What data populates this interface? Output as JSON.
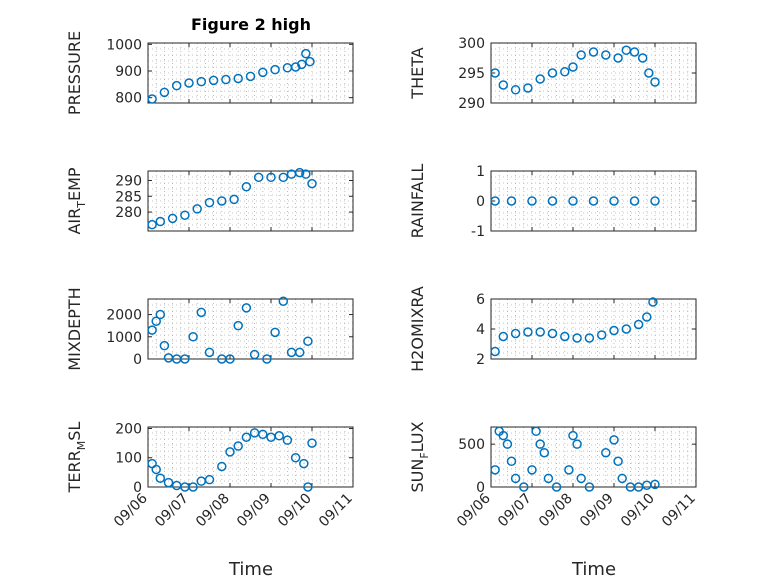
{
  "figure": {
    "title": "Figure 2 high",
    "time_ticks": [
      "09/06",
      "09/07",
      "09/08",
      "09/09",
      "09/10",
      "09/11"
    ],
    "xlabel": "Time",
    "marker_color": "#0072BD"
  },
  "chart_data": [
    {
      "type": "scatter",
      "ylabel": "PRESSURE",
      "ylim": [
        780,
        1005
      ],
      "yticks": [
        800,
        900,
        1000
      ],
      "ytick_labels": [
        "800",
        "900",
        "1000"
      ],
      "x": [
        0.1,
        0.4,
        0.7,
        1.0,
        1.3,
        1.6,
        1.9,
        2.2,
        2.5,
        2.8,
        3.1,
        3.4,
        3.6,
        3.75,
        3.85,
        3.95
      ],
      "y": [
        795,
        820,
        845,
        855,
        860,
        865,
        868,
        872,
        880,
        895,
        905,
        912,
        915,
        925,
        965,
        935
      ],
      "xlim": [
        0,
        5
      ],
      "grid": true
    },
    {
      "type": "scatter",
      "ylabel": "THETA",
      "ylim": [
        290,
        300
      ],
      "yticks": [
        290,
        295,
        300
      ],
      "ytick_labels": [
        "290",
        "295",
        "300"
      ],
      "x": [
        0.1,
        0.3,
        0.6,
        0.9,
        1.2,
        1.5,
        1.8,
        2.0,
        2.2,
        2.5,
        2.8,
        3.1,
        3.3,
        3.5,
        3.7,
        3.85,
        4.0
      ],
      "y": [
        295,
        293,
        292.2,
        292.5,
        294,
        295,
        295.2,
        296,
        298,
        298.5,
        298,
        297.5,
        298.8,
        298.5,
        297.5,
        295,
        293.5
      ],
      "xlim": [
        0,
        5
      ],
      "grid": true
    },
    {
      "type": "scatter",
      "ylabel": "AIR_TEMP",
      "ylim": [
        274,
        293
      ],
      "yticks": [
        280,
        285,
        290
      ],
      "ytick_labels": [
        "280",
        "285",
        "290"
      ],
      "x": [
        0.1,
        0.3,
        0.6,
        0.9,
        1.2,
        1.5,
        1.8,
        2.1,
        2.4,
        2.7,
        3.0,
        3.3,
        3.5,
        3.7,
        3.85,
        4.0
      ],
      "y": [
        276,
        277,
        278,
        279,
        281,
        283,
        283.5,
        284,
        288,
        291,
        291,
        291,
        292,
        292.5,
        292,
        289
      ],
      "xlim": [
        0,
        5
      ],
      "grid": true
    },
    {
      "type": "scatter",
      "ylabel": "RAINFALL",
      "ylim": [
        -1,
        1
      ],
      "yticks": [
        -1,
        0,
        1
      ],
      "ytick_labels": [
        "-1",
        "0",
        "1"
      ],
      "x": [
        0.1,
        0.5,
        1.0,
        1.5,
        2.0,
        2.5,
        3.0,
        3.5,
        4.0
      ],
      "y": [
        0,
        0,
        0,
        0,
        0,
        0,
        0,
        0,
        0
      ],
      "xlim": [
        0,
        5
      ],
      "grid": true
    },
    {
      "type": "scatter",
      "ylabel": "MIXDEPTH",
      "ylim": [
        0,
        2700
      ],
      "yticks": [
        0,
        1000,
        2000
      ],
      "ytick_labels": [
        "0",
        "1000",
        "2000"
      ],
      "x": [
        0.1,
        0.2,
        0.3,
        0.4,
        0.5,
        0.7,
        0.9,
        1.1,
        1.3,
        1.5,
        1.8,
        2.0,
        2.2,
        2.4,
        2.6,
        2.9,
        3.1,
        3.3,
        3.5,
        3.7,
        3.9
      ],
      "y": [
        1300,
        1700,
        2000,
        600,
        50,
        0,
        0,
        1000,
        2100,
        300,
        0,
        0,
        1500,
        2300,
        200,
        0,
        1200,
        2600,
        300,
        300,
        800
      ],
      "xlim": [
        0,
        5
      ],
      "grid": true
    },
    {
      "type": "scatter",
      "ylabel": "H2OMIXRA",
      "ylim": [
        2,
        6
      ],
      "yticks": [
        2,
        4,
        6
      ],
      "ytick_labels": [
        "2",
        "4",
        "6"
      ],
      "x": [
        0.1,
        0.3,
        0.6,
        0.9,
        1.2,
        1.5,
        1.8,
        2.1,
        2.4,
        2.7,
        3.0,
        3.3,
        3.6,
        3.8,
        3.95
      ],
      "y": [
        2.5,
        3.5,
        3.7,
        3.8,
        3.8,
        3.7,
        3.5,
        3.4,
        3.4,
        3.6,
        3.9,
        4.0,
        4.3,
        4.8,
        5.8
      ],
      "xlim": [
        0,
        5
      ],
      "grid": true
    },
    {
      "type": "scatter",
      "ylabel": "TERR_MSL",
      "ylim": [
        0,
        205
      ],
      "yticks": [
        0,
        100,
        200
      ],
      "ytick_labels": [
        "0",
        "100",
        "200"
      ],
      "x": [
        0.1,
        0.2,
        0.3,
        0.5,
        0.7,
        0.9,
        1.1,
        1.3,
        1.5,
        1.8,
        2.0,
        2.2,
        2.4,
        2.6,
        2.8,
        3.0,
        3.2,
        3.4,
        3.6,
        3.8,
        3.9,
        4.0
      ],
      "y": [
        80,
        60,
        30,
        15,
        5,
        0,
        0,
        20,
        25,
        70,
        120,
        140,
        170,
        185,
        180,
        170,
        175,
        160,
        100,
        80,
        0,
        150
      ],
      "xlim": [
        0,
        5
      ],
      "grid": true
    },
    {
      "type": "scatter",
      "ylabel": "SUN_FLUX",
      "ylim": [
        0,
        700
      ],
      "yticks": [
        0,
        500
      ],
      "ytick_labels": [
        "0",
        "500"
      ],
      "x": [
        0.1,
        0.2,
        0.3,
        0.4,
        0.5,
        0.6,
        0.8,
        1.0,
        1.1,
        1.2,
        1.3,
        1.4,
        1.6,
        1.9,
        2.0,
        2.1,
        2.2,
        2.4,
        2.8,
        3.0,
        3.1,
        3.2,
        3.4,
        3.6,
        3.8,
        4.0
      ],
      "y": [
        200,
        650,
        600,
        500,
        300,
        100,
        0,
        200,
        650,
        500,
        400,
        100,
        0,
        200,
        600,
        500,
        100,
        0,
        400,
        550,
        300,
        100,
        0,
        0,
        20,
        30
      ],
      "xlim": [
        0,
        5
      ],
      "grid": true
    }
  ]
}
